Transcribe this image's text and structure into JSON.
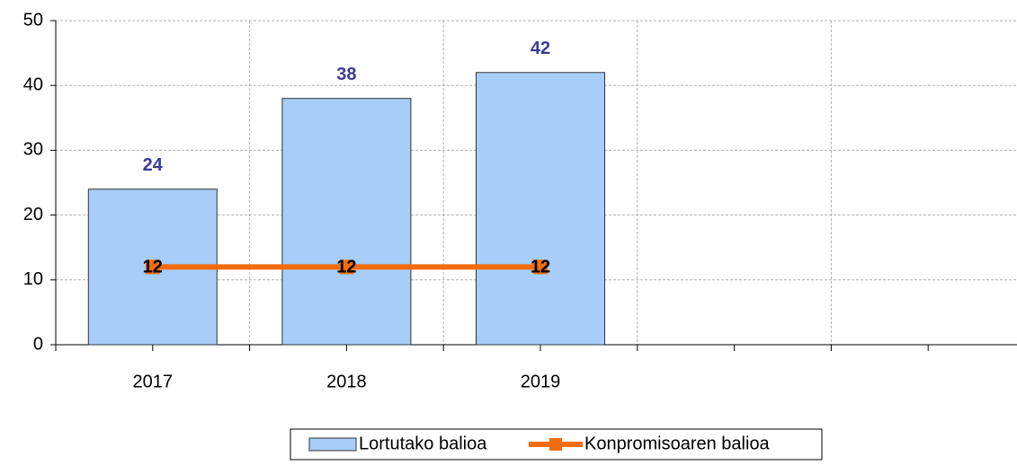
{
  "chart_data": {
    "type": "bar",
    "categories": [
      "2017",
      "2018",
      "2019",
      null,
      null
    ],
    "series": [
      {
        "name": "Lortutako balioa",
        "type": "bar",
        "color": "#a6cef8",
        "values": [
          24,
          38,
          42,
          null,
          null
        ]
      },
      {
        "name": "Konpromisoaren balioa",
        "type": "line",
        "color": "#f26c0c",
        "values": [
          12,
          12,
          12,
          null,
          null
        ]
      }
    ],
    "ylim": [
      0,
      50
    ],
    "yticks": [
      0,
      10,
      20,
      30,
      40,
      50
    ],
    "grid": true,
    "legend": "bottom"
  }
}
